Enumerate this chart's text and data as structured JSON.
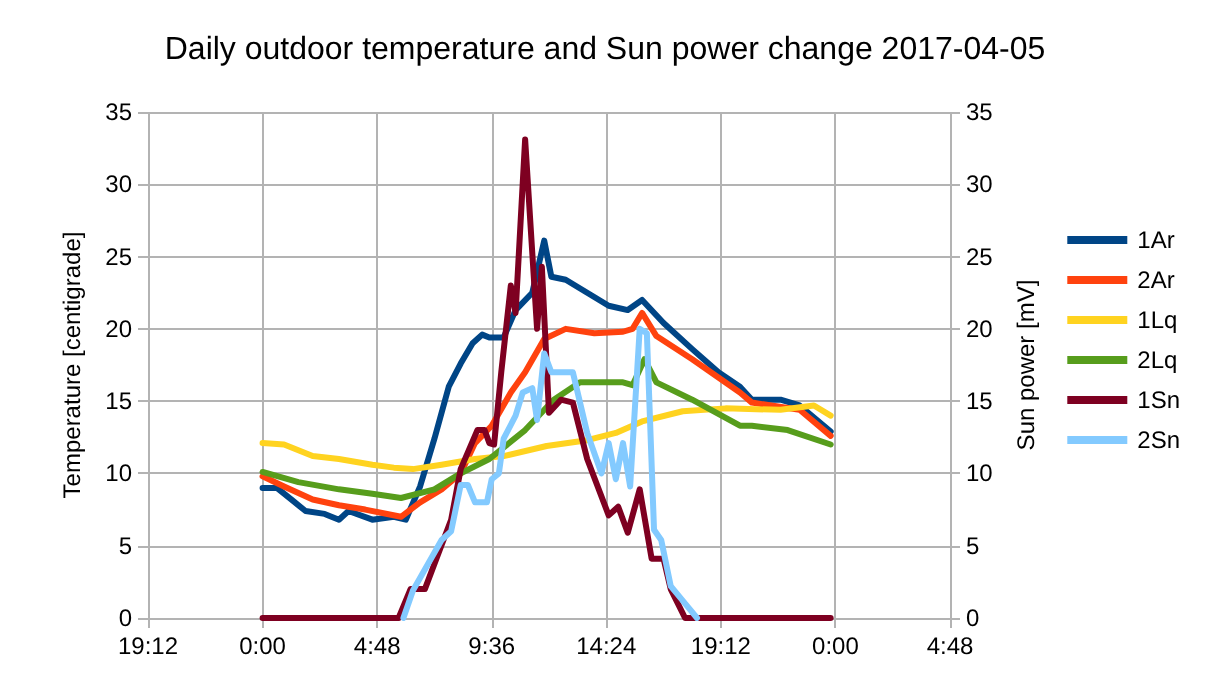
{
  "chart_data": {
    "type": "line",
    "title": "Daily outdoor temperature and Sun power change 2017-04-05",
    "ylabel": "Temperature [centigrade]",
    "y2label": "Sun power [mV]",
    "xlim": [
      "2017-04-04T19:12",
      "2017-04-06T04:48"
    ],
    "xticks": [
      {
        "value": "2017-04-04T19:12",
        "label": "19:12"
      },
      {
        "value": "2017-04-05T00:00",
        "label": "0:00"
      },
      {
        "value": "2017-04-05T04:48",
        "label": "4:48"
      },
      {
        "value": "2017-04-05T09:36",
        "label": "9:36"
      },
      {
        "value": "2017-04-05T14:24",
        "label": "14:24"
      },
      {
        "value": "2017-04-05T19:12",
        "label": "19:12"
      },
      {
        "value": "2017-04-06T00:00",
        "label": "0:00"
      },
      {
        "value": "2017-04-06T04:48",
        "label": "4:48"
      }
    ],
    "ylim": [
      0,
      35
    ],
    "yticks": [
      0,
      5,
      10,
      15,
      20,
      25,
      30,
      35
    ],
    "y2lim": [
      0,
      35
    ],
    "y2ticks": [
      0,
      5,
      10,
      15,
      20,
      25,
      30,
      35
    ],
    "grid": true,
    "legend": "right",
    "marker": "none",
    "line_style": "solid",
    "series": [
      {
        "name": "1Ar",
        "color": "#004586",
        "x": [
          "2017-04-05T00:00",
          "2017-04-05T00:36",
          "2017-04-05T01:12",
          "2017-04-05T01:48",
          "2017-04-05T02:36",
          "2017-04-05T03:12",
          "2017-04-05T03:36",
          "2017-04-05T04:36",
          "2017-04-05T05:30",
          "2017-04-05T06:00",
          "2017-04-05T06:36",
          "2017-04-05T07:12",
          "2017-04-05T07:48",
          "2017-04-05T08:18",
          "2017-04-05T08:48",
          "2017-04-05T09:12",
          "2017-04-05T09:30",
          "2017-04-05T10:06",
          "2017-04-05T10:36",
          "2017-04-05T11:18",
          "2017-04-05T11:48",
          "2017-04-05T12:06",
          "2017-04-05T12:42",
          "2017-04-05T13:36",
          "2017-04-05T14:30",
          "2017-04-05T15:18",
          "2017-04-05T15:54",
          "2017-04-05T16:48",
          "2017-04-05T18:00",
          "2017-04-05T19:06",
          "2017-04-05T20:00",
          "2017-04-05T20:30",
          "2017-04-05T21:42",
          "2017-04-05T22:30",
          "2017-04-05T23:48"
        ],
        "values": [
          9.0,
          9.0,
          8.2,
          7.4,
          7.2,
          6.8,
          7.4,
          6.8,
          7.0,
          6.8,
          9.1,
          12.4,
          16.0,
          17.6,
          19.0,
          19.6,
          19.4,
          19.4,
          21.3,
          22.5,
          26.1,
          23.6,
          23.4,
          22.5,
          21.6,
          21.3,
          22.0,
          20.4,
          18.6,
          17.0,
          16.0,
          15.1,
          15.1,
          14.7,
          12.9
        ]
      },
      {
        "name": "2Ar",
        "color": "#ff420e",
        "x": [
          "2017-04-05T00:00",
          "2017-04-05T00:54",
          "2017-04-05T02:06",
          "2017-04-05T03:12",
          "2017-04-05T04:18",
          "2017-04-05T05:48",
          "2017-04-05T06:36",
          "2017-04-05T07:30",
          "2017-04-05T08:18",
          "2017-04-05T08:54",
          "2017-04-05T09:36",
          "2017-04-05T10:24",
          "2017-04-05T11:00",
          "2017-04-05T11:48",
          "2017-04-05T12:42",
          "2017-04-05T13:54",
          "2017-04-05T15:06",
          "2017-04-05T15:30",
          "2017-04-05T15:54",
          "2017-04-05T16:30",
          "2017-04-05T18:00",
          "2017-04-05T20:00",
          "2017-04-05T20:30",
          "2017-04-05T22:30",
          "2017-04-05T23:48"
        ],
        "values": [
          9.8,
          9.1,
          8.2,
          7.8,
          7.5,
          7.0,
          8.0,
          8.9,
          10.0,
          12.1,
          13.3,
          15.6,
          17.0,
          19.3,
          20.0,
          19.7,
          19.8,
          20.0,
          21.1,
          19.5,
          17.9,
          15.6,
          14.9,
          14.4,
          12.6
        ]
      },
      {
        "name": "1Lq",
        "color": "#ffd320",
        "x": [
          "2017-04-05T00:00",
          "2017-04-05T00:54",
          "2017-04-05T02:06",
          "2017-04-05T03:12",
          "2017-04-05T04:36",
          "2017-04-05T05:30",
          "2017-04-05T06:18",
          "2017-04-05T07:30",
          "2017-04-05T08:54",
          "2017-04-05T10:06",
          "2017-04-05T11:54",
          "2017-04-05T13:36",
          "2017-04-05T14:48",
          "2017-04-05T15:54",
          "2017-04-05T17:36",
          "2017-04-05T19:24",
          "2017-04-05T21:42",
          "2017-04-05T23:06",
          "2017-04-05T23:48"
        ],
        "values": [
          12.1,
          12.0,
          11.2,
          11.0,
          10.6,
          10.4,
          10.3,
          10.6,
          11.0,
          11.2,
          11.9,
          12.3,
          12.8,
          13.6,
          14.3,
          14.5,
          14.4,
          14.7,
          14.0
        ]
      },
      {
        "name": "2Lq",
        "color": "#579d1c",
        "x": [
          "2017-04-05T00:00",
          "2017-04-05T01:30",
          "2017-04-05T03:12",
          "2017-04-05T04:36",
          "2017-04-05T05:48",
          "2017-04-05T07:12",
          "2017-04-05T08:18",
          "2017-04-05T09:30",
          "2017-04-05T11:00",
          "2017-04-05T12:12",
          "2017-04-05T13:18",
          "2017-04-05T15:06",
          "2017-04-05T15:30",
          "2017-04-05T16:00",
          "2017-04-05T16:30",
          "2017-04-05T18:00",
          "2017-04-05T20:00",
          "2017-04-05T20:30",
          "2017-04-05T22:00",
          "2017-04-05T23:48"
        ],
        "values": [
          10.1,
          9.4,
          8.9,
          8.6,
          8.3,
          8.9,
          10.0,
          11.0,
          13.0,
          15.1,
          16.3,
          16.3,
          16.1,
          17.9,
          16.3,
          15.1,
          13.3,
          13.3,
          13.0,
          12.0
        ]
      },
      {
        "name": "1Sn",
        "color": "#7e0021",
        "axis": "y2",
        "x": [
          "2017-04-05T00:00",
          "2017-04-05T05:42",
          "2017-04-05T06:12",
          "2017-04-05T06:48",
          "2017-04-05T07:54",
          "2017-04-05T08:18",
          "2017-04-05T09:00",
          "2017-04-05T09:18",
          "2017-04-05T09:30",
          "2017-04-05T09:42",
          "2017-04-05T10:00",
          "2017-04-05T10:24",
          "2017-04-05T10:36",
          "2017-04-05T11:00",
          "2017-04-05T11:30",
          "2017-04-05T11:42",
          "2017-04-05T12:00",
          "2017-04-05T12:30",
          "2017-04-05T13:00",
          "2017-04-05T13:36",
          "2017-04-05T14:30",
          "2017-04-05T14:54",
          "2017-04-05T15:18",
          "2017-04-05T15:48",
          "2017-04-05T16:18",
          "2017-04-05T16:48",
          "2017-04-05T17:06",
          "2017-04-05T17:42",
          "2017-04-05T23:48"
        ],
        "values": [
          0,
          0,
          2.0,
          2.0,
          6.8,
          10.3,
          13.0,
          13.0,
          12.1,
          12.0,
          17.0,
          23.0,
          21.1,
          33.1,
          20.0,
          24.3,
          14.2,
          15.1,
          14.9,
          11.0,
          7.1,
          7.7,
          5.9,
          8.9,
          4.1,
          4.1,
          2.0,
          0,
          0
        ]
      },
      {
        "name": "2Sn",
        "color": "#83caff",
        "axis": "y2",
        "x": [
          "2017-04-05T05:54",
          "2017-04-05T06:18",
          "2017-04-05T07:30",
          "2017-04-05T07:54",
          "2017-04-05T08:18",
          "2017-04-05T08:36",
          "2017-04-05T08:54",
          "2017-04-05T09:24",
          "2017-04-05T09:36",
          "2017-04-05T09:54",
          "2017-04-05T10:06",
          "2017-04-05T10:36",
          "2017-04-05T10:54",
          "2017-04-05T11:18",
          "2017-04-05T11:30",
          "2017-04-05T11:48",
          "2017-04-05T12:06",
          "2017-04-05T12:30",
          "2017-04-05T13:00",
          "2017-04-05T13:36",
          "2017-04-05T13:54",
          "2017-04-05T14:12",
          "2017-04-05T14:30",
          "2017-04-05T14:48",
          "2017-04-05T15:06",
          "2017-04-05T15:24",
          "2017-04-05T15:48",
          "2017-04-05T16:06",
          "2017-04-05T16:24",
          "2017-04-05T16:42",
          "2017-04-05T17:06",
          "2017-04-05T17:48",
          "2017-04-05T18:12"
        ],
        "values": [
          0,
          1.9,
          5.4,
          6.0,
          9.2,
          9.2,
          8.0,
          8.0,
          9.6,
          10.0,
          12.4,
          14.0,
          15.6,
          15.9,
          13.7,
          18.3,
          17.0,
          17.0,
          17.0,
          12.8,
          11.4,
          10.0,
          12.1,
          9.6,
          12.1,
          9.1,
          20.0,
          19.7,
          6.1,
          5.4,
          2.2,
          0.8,
          0
        ]
      }
    ]
  }
}
